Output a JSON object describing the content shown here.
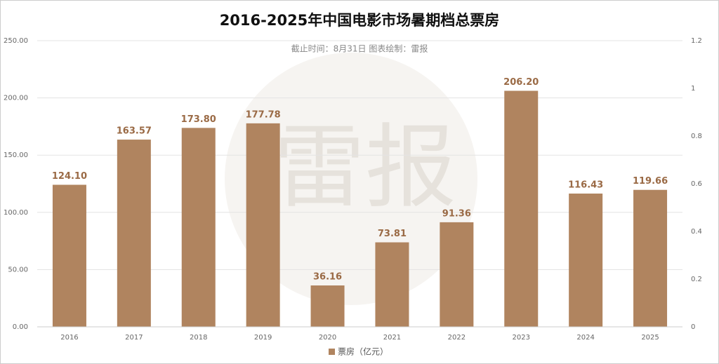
{
  "chart_data": {
    "type": "bar",
    "title": "2016-2025年中国电影市场暑期档总票房",
    "subtitle": "截止时间：8月31日  图表绘制：雷报",
    "watermark": "雷报",
    "categories": [
      "2016",
      "2017",
      "2018",
      "2019",
      "2020",
      "2021",
      "2022",
      "2023",
      "2024",
      "2025"
    ],
    "series": [
      {
        "name": "票房（亿元）",
        "color": "#b0845f",
        "values": [
          124.1,
          163.57,
          173.8,
          177.78,
          36.16,
          73.81,
          91.36,
          206.2,
          116.43,
          119.66
        ],
        "value_labels": [
          "124.10",
          "163.57",
          "173.80",
          "177.78",
          "36.16",
          "73.81",
          "91.36",
          "206.20",
          "116.43",
          "119.66"
        ]
      }
    ],
    "ylim": [
      0,
      250
    ],
    "yticks": [
      {
        "value": 0,
        "label": "0.00"
      },
      {
        "value": 50,
        "label": "50.00"
      },
      {
        "value": 100,
        "label": "100.00"
      },
      {
        "value": 150,
        "label": "150.00"
      },
      {
        "value": 200,
        "label": "200.00"
      },
      {
        "value": 250,
        "label": "250.00"
      }
    ],
    "y2lim": [
      0,
      1.2
    ],
    "y2ticks": [
      0,
      0.2,
      0.4,
      0.6,
      0.8,
      1,
      1.2
    ],
    "grid": true,
    "legend": "bottom"
  }
}
